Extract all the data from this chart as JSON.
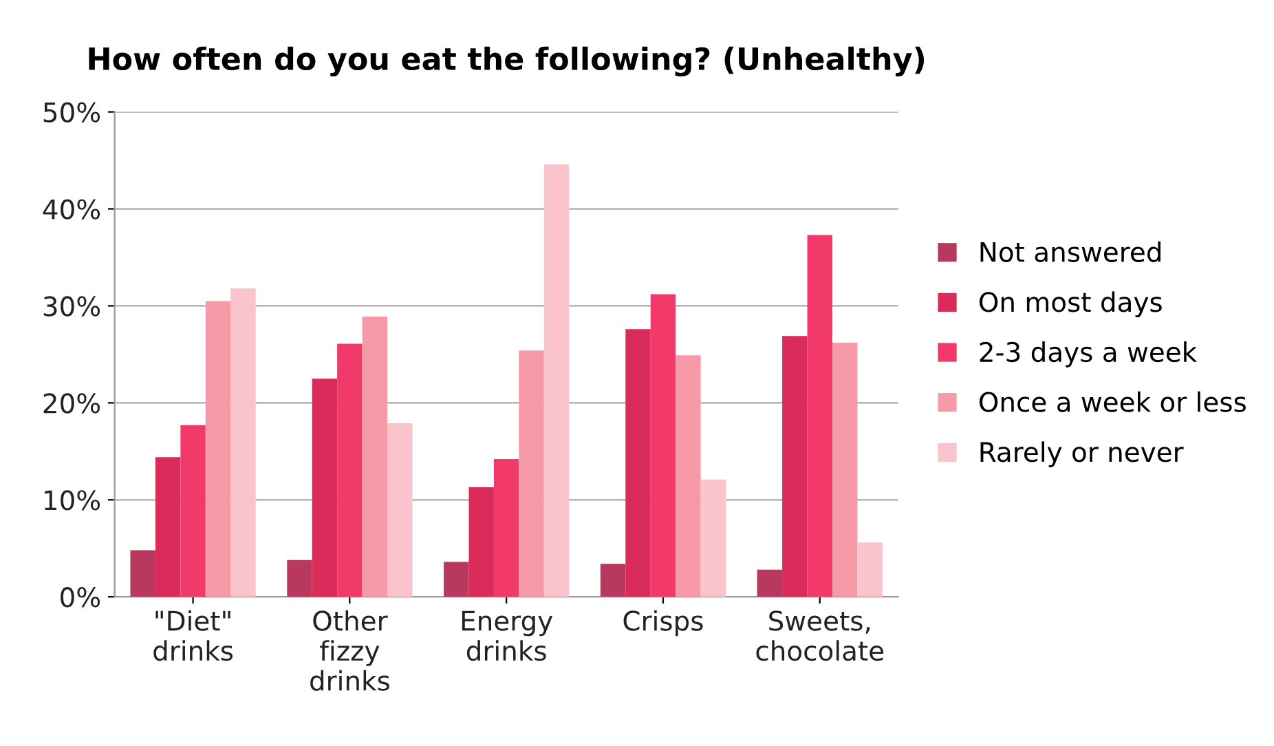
{
  "chart_data": {
    "type": "bar",
    "title": "How often do you eat the following? (Unhealthy)",
    "categories": [
      "\"Diet\"\ndrinks",
      "Other\nfizzy\ndrinks",
      "Energy\ndrinks",
      "Crisps",
      "Sweets,\nchocolate"
    ],
    "series": [
      {
        "name": "Not answered",
        "color": "#b8385e",
        "values": [
          4.8,
          3.8,
          3.6,
          3.4,
          2.8
        ]
      },
      {
        "name": "On most days",
        "color": "#d92c5a",
        "values": [
          14.4,
          22.5,
          11.3,
          27.6,
          26.9
        ]
      },
      {
        "name": "2-3 days a week",
        "color": "#f23a6a",
        "values": [
          17.7,
          26.1,
          14.2,
          31.2,
          37.3
        ]
      },
      {
        "name": "Once a week or less",
        "color": "#f79aa8",
        "values": [
          30.5,
          28.9,
          25.4,
          24.9,
          26.2
        ]
      },
      {
        "name": "Rarely or never",
        "color": "#fbc3cc",
        "values": [
          31.8,
          17.9,
          44.6,
          12.1,
          5.6
        ]
      }
    ],
    "ylim": [
      0,
      50
    ],
    "yticks": [
      {
        "value": 0,
        "label": "0%"
      },
      {
        "value": 10,
        "label": "10%"
      },
      {
        "value": 20,
        "label": "20%"
      },
      {
        "value": 30,
        "label": "30%"
      },
      {
        "value": 40,
        "label": "40%"
      },
      {
        "value": 50,
        "label": "50%"
      }
    ],
    "grid": "y",
    "legend": "right"
  }
}
